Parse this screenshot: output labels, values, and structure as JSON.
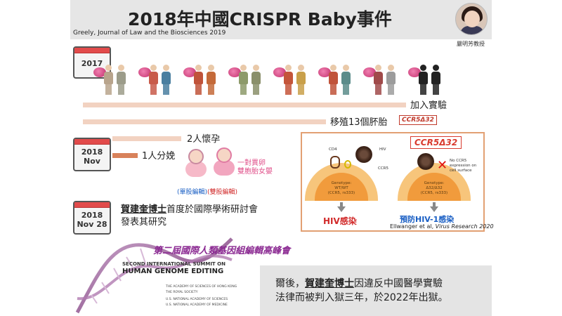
{
  "header": {
    "title": "2018年中國CRISPR Baby事件",
    "citation": "Greely, Journal of Law and the Biosciences 2019",
    "presenter_name": "嚴明芳教授"
  },
  "timeline": {
    "cal_2017": "2017",
    "cal_2018_nov_year": "2018",
    "cal_2018_nov_month": "Nov",
    "cal_2018_nov28_year": "2018",
    "cal_2018_nov28_date": "Nov 28"
  },
  "events": {
    "join": "加入實驗",
    "implant": "移殖13個肧胎",
    "ccr_tag": "CCR5Δ32",
    "pregnant": "2人懷孕",
    "birth": "1人分娩",
    "twins": "一對異卵雙胞胎女嬰",
    "twins_line1": "一對異卵",
    "twins_line2": "雙胞胎女嬰",
    "edit_single": "(單股編輯)",
    "edit_double": "(雙股編輯)",
    "announce_name": "賀建奎博士",
    "announce_text": "首度於國際學術研討會發表其研究",
    "announce_line1_rest": "首度於國際學術研討會",
    "announce_line2": "發表其研究"
  },
  "panel": {
    "tag": "CCR5Δ32",
    "labels": {
      "cd4": "CD4",
      "hiv": "HIV",
      "ccr5": "CCR5",
      "no_ccr5": "No CCR5 expression on cell surface"
    },
    "left": {
      "genotype_label": "Genotype:",
      "genotype": "WT/WT",
      "rs": "(CCR5, rs333)",
      "result": "HIV感染"
    },
    "right": {
      "genotype_label": "Genotype:",
      "genotype": "Δ32/Δ32",
      "rs": "(CCR5, rs333)",
      "result": "預防HIV-1感染"
    },
    "cite_authors": "Ellwanger et al,",
    "cite_journal": "Virus Research 2020"
  },
  "summit": {
    "title_zh": "第二屆國際人類基因組編輯高峰會",
    "title_en_line1": "SECOND INTERNATIONAL SUMMIT ON",
    "title_en_line2": "HUMAN GENOME EDITING",
    "org1": "THE ACADEMY OF SCIENCES OF HONG KONG",
    "org2": "THE ROYAL SOCIETY",
    "org3": "U.S. NATIONAL ACADEMY OF SCIENCES",
    "org4": "U.S. NATIONAL ACADEMY OF MEDICINE"
  },
  "outcome": {
    "prefix": "爾後，",
    "name": "賀建奎博士",
    "rest1": "因違反中國醫學實驗",
    "rest2": "法律而被判入獄三年，於2022年出獄。"
  },
  "colors": {
    "bar": "#f2d2c1",
    "accent_red": "#d12a2a",
    "accent_blue": "#1a5fc4",
    "panel_border": "#e2a073",
    "summit_purple": "#8b2a92"
  }
}
